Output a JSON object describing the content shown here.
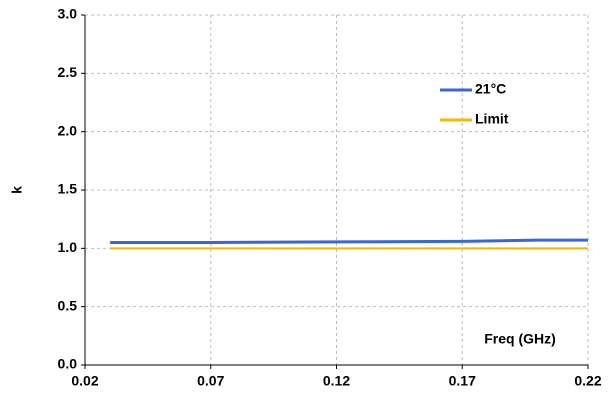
{
  "chart_data": {
    "type": "line",
    "x_label": "Freq (GHz)",
    "y_label": "k",
    "xlim": [
      0.02,
      0.22
    ],
    "xticks": [
      0.02,
      0.07,
      0.12,
      0.17,
      0.22
    ],
    "ylim": [
      0,
      3
    ],
    "yticks": [
      {
        "value": 0,
        "label": "0.0"
      },
      0.5,
      {
        "value": 1,
        "label": "1.0"
      },
      1.5,
      {
        "value": 2,
        "label": "2.0"
      },
      2.5,
      {
        "value": 3,
        "label": "3.0"
      }
    ],
    "grid": true,
    "legend": "upper right",
    "series": [
      {
        "name": "21°C",
        "color": "#3a66d6",
        "x": [
          0.03,
          0.07,
          0.12,
          0.17,
          0.2,
          0.22
        ],
        "values": [
          1.05,
          1.05,
          1.055,
          1.06,
          1.07,
          1.07
        ]
      },
      {
        "name": "Limit",
        "color": "#f5b800",
        "x": [
          0.03,
          0.07,
          0.12,
          0.17,
          0.22
        ],
        "values": [
          1.0,
          1.0,
          1.0,
          1.0,
          1.0
        ]
      }
    ]
  }
}
